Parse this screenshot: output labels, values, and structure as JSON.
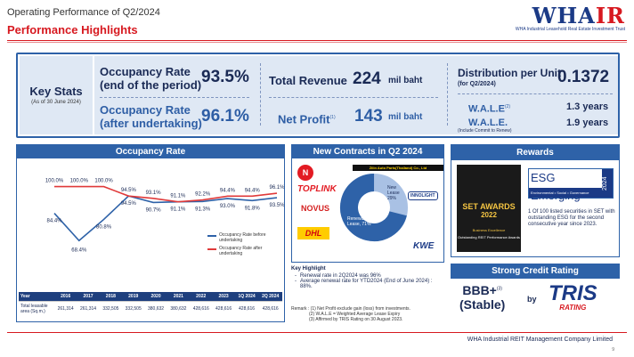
{
  "header": {
    "slide_title": "Operating Performance of Q2/2024",
    "section_title": "Performance Highlights",
    "logo_text": "WHAIR",
    "logo_sub": "WHA Industrial Leasehold Real Estate Investment Trust"
  },
  "key_stats": {
    "title": "Key Stats",
    "subtitle": "(As of 30 June 2024)",
    "occupancy_end_label_1": "Occupancy Rate",
    "occupancy_end_label_2": "(end of the period)",
    "occupancy_end_value": "93.5%",
    "occupancy_after_label_1": "Occupancy Rate",
    "occupancy_after_label_2": "(after undertaking)",
    "occupancy_after_value": "96.1%",
    "total_revenue_label": "Total Revenue",
    "total_revenue_value": "224",
    "total_revenue_unit": "mil baht",
    "net_profit_label": "Net Profit",
    "net_profit_sup": "(1)",
    "net_profit_value": "143",
    "net_profit_unit": "mil baht",
    "distribution_label": "Distribution per Unit",
    "distribution_period": "(for Q2/2024)",
    "distribution_value": "0.1372",
    "wale_label": "W.A.L.E",
    "wale_sup": "(2)",
    "wale_value": "1.3 years",
    "wale2_label": "W.A.L.E.",
    "wale2_note": "(Include Commit to Renew)",
    "wale2_value": "1.9 years"
  },
  "occupancy_panel": {
    "title": "Occupancy Rate",
    "legend_before": "Occupancy Rate before undertaking",
    "legend_after": "Occupancy Rate after undertaking",
    "table_year_label": "Year",
    "table_area_label": "Total leasable area (Sq.m.)",
    "areas": [
      "261,314",
      "261,314",
      "332,505",
      "332,505",
      "380,632",
      "380,632",
      "428,616",
      "428,616",
      "428,616",
      "428,616"
    ]
  },
  "chart_data": {
    "type": "line",
    "categories": [
      "2016",
      "2017",
      "2018",
      "2019",
      "2020",
      "2021",
      "2022",
      "2023",
      "1Q 2024",
      "2Q 2024"
    ],
    "series": [
      {
        "name": "Occupancy Rate before undertaking",
        "values": [
          84.4,
          68.4,
          80.8,
          94.5,
          90.7,
          91.1,
          91.3,
          93.0,
          91.8,
          93.5
        ],
        "labels": [
          "84.4%",
          "68.4%",
          "80.8%",
          "94.5%",
          "90.7%",
          "91.1%",
          "91.3%",
          "93.0%",
          "91.8%",
          "93.5%"
        ],
        "color": "#2e62a8"
      },
      {
        "name": "Occupancy Rate after undertaking",
        "values": [
          100.0,
          100.0,
          100.0,
          94.5,
          93.1,
          91.1,
          92.2,
          94.4,
          94.4,
          96.1
        ],
        "labels": [
          "100.0%",
          "100.0%",
          "100.0%",
          "94.5%",
          "93.1%",
          "91.1%",
          "92.2%",
          "94.4%",
          "94.4%",
          "96.1%"
        ],
        "color": "#e03a3a"
      }
    ],
    "ylim": [
      55,
      105
    ],
    "legend": "right"
  },
  "contracts_panel": {
    "title": "New Contracts in Q2 2024",
    "tenant_label": "Zilin Auto Parts(Thailand) Co., Ltd",
    "slice_new_lease": "New Lease 29%",
    "slice_renewal": "Renewal Lease, 71%",
    "donut_values": [
      29,
      71
    ],
    "brands": [
      "TOPLINK",
      "NOVUS",
      "DHL",
      "INNOLIGHT",
      "KWE"
    ]
  },
  "key_highlight": {
    "title": "Key Highlight",
    "bullets": [
      "Renewal rate in 2Q2024 was 96%",
      "Average renewal rate for YTD2024 (End of June 2024) : 88%."
    ]
  },
  "remarks": [
    "Remark : (1) Net Profit exclude gain (loss) from investments.",
    "(2) W.A.L.E = Weighted Average Lease Expiry",
    "(3) Affirmed by TRIS Rating on 30 August 2023."
  ],
  "rewards_panel": {
    "title": "Rewards",
    "set_awards": "SET AWARDS",
    "set_year": "2022",
    "set_caption": "Business Excellence",
    "set_subcaption": "Outstanding REIT Performance Awards",
    "esg_title": "ESG Emerging",
    "esg_sub": "Environmental • Social • Governance",
    "esg_year": "2024",
    "esg_desc": "1 Of 100 listed securities in SET with outstanding ESG for the second consecutive year since 2023."
  },
  "credit_panel": {
    "title": "Strong Credit Rating",
    "rating": "BBB+",
    "rating_sup": "(3)",
    "outlook": "(Stable)",
    "by": "by",
    "agency": "TRIS",
    "agency_sub": "RATING"
  },
  "footer": {
    "company": "WHA Industrial REIT Management Company Limited",
    "page": "9"
  }
}
